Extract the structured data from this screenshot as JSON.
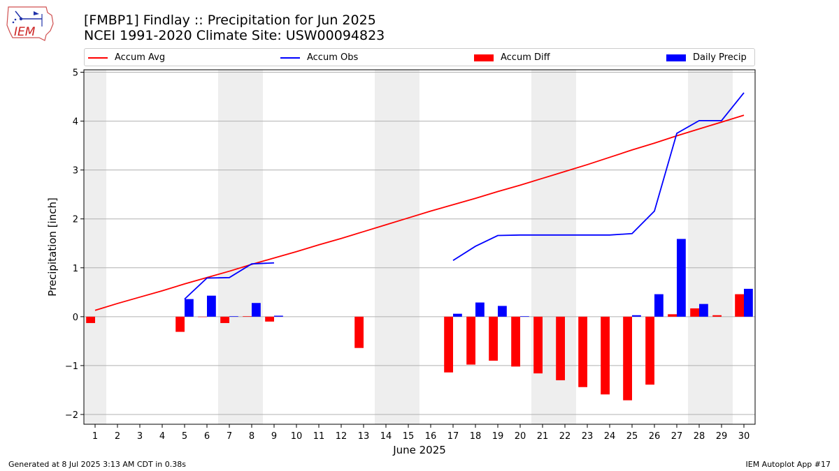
{
  "header": {
    "title_line1": "[FMBP1] Findlay :: Precipitation for Jun 2025",
    "title_line2": "NCEI 1991-2020 Climate Site: USW00094823"
  },
  "logo": {
    "text": "IEM",
    "icon": "iem-logo-icon"
  },
  "footer": {
    "left": "Generated at 8 Jul 2025 3:13 AM CDT in 0.38s",
    "right": "IEM Autoplot App #17"
  },
  "colors": {
    "avg": "#ff0000",
    "obs": "#0000ff",
    "diff": "#ff0000",
    "daily": "#0000ff",
    "weekend_band": "#eeeeee",
    "grid": "#b0b0b0"
  },
  "chart_data": {
    "type": "bar",
    "xlabel": "June 2025",
    "ylabel": "Precipitation [inch]",
    "xlim": [
      0.5,
      30.5
    ],
    "ylim": [
      -2.2,
      5.05
    ],
    "yticks": [
      -2,
      -1,
      0,
      1,
      2,
      3,
      4,
      5
    ],
    "ytick_labels": [
      "−2",
      "−1",
      "0",
      "1",
      "2",
      "3",
      "4",
      "5"
    ],
    "grid": "horizontal",
    "legend_position": "top",
    "weekend_bands": [
      [
        0.5,
        1.5
      ],
      [
        6.5,
        8.5
      ],
      [
        13.5,
        15.5
      ],
      [
        20.5,
        22.5
      ],
      [
        27.5,
        29.5
      ]
    ],
    "days": [
      1,
      2,
      3,
      4,
      5,
      6,
      7,
      8,
      9,
      10,
      11,
      12,
      13,
      14,
      15,
      16,
      17,
      18,
      19,
      20,
      21,
      22,
      23,
      24,
      25,
      26,
      27,
      28,
      29,
      30
    ],
    "legend": [
      "Accum Avg",
      "Accum Obs",
      "Accum Diff",
      "Daily Precip"
    ],
    "series": [
      {
        "name": "Accum Avg",
        "kind": "line",
        "values": [
          0.13,
          0.27,
          0.4,
          0.53,
          0.67,
          0.8,
          0.93,
          1.07,
          1.2,
          1.33,
          1.47,
          1.6,
          1.74,
          1.88,
          2.02,
          2.16,
          2.29,
          2.42,
          2.56,
          2.69,
          2.83,
          2.97,
          3.11,
          3.26,
          3.41,
          3.55,
          3.7,
          3.84,
          3.98,
          4.12
        ]
      },
      {
        "name": "Accum Obs",
        "kind": "line",
        "values": [
          null,
          null,
          null,
          null,
          0.36,
          0.79,
          0.8,
          1.08,
          1.1,
          null,
          null,
          null,
          null,
          null,
          null,
          null,
          1.15,
          1.44,
          1.66,
          1.67,
          1.67,
          1.67,
          1.67,
          1.67,
          1.7,
          2.16,
          3.75,
          4.01,
          4.01,
          4.58
        ]
      },
      {
        "name": "Accum Diff",
        "kind": "bar",
        "values": [
          -0.13,
          null,
          null,
          null,
          -0.31,
          0.0,
          -0.13,
          0.01,
          -0.1,
          null,
          null,
          null,
          -0.64,
          null,
          null,
          null,
          -1.14,
          -0.98,
          -0.9,
          -1.02,
          -1.16,
          -1.3,
          -1.44,
          -1.59,
          -1.71,
          -1.39,
          0.05,
          0.17,
          0.03,
          0.46
        ]
      },
      {
        "name": "Daily Precip",
        "kind": "bar",
        "values": [
          null,
          null,
          null,
          null,
          0.36,
          0.43,
          0.01,
          0.28,
          0.02,
          null,
          null,
          null,
          null,
          null,
          null,
          null,
          0.06,
          0.29,
          0.22,
          0.01,
          null,
          null,
          null,
          null,
          0.03,
          0.46,
          1.59,
          0.26,
          null,
          0.57
        ]
      }
    ]
  }
}
